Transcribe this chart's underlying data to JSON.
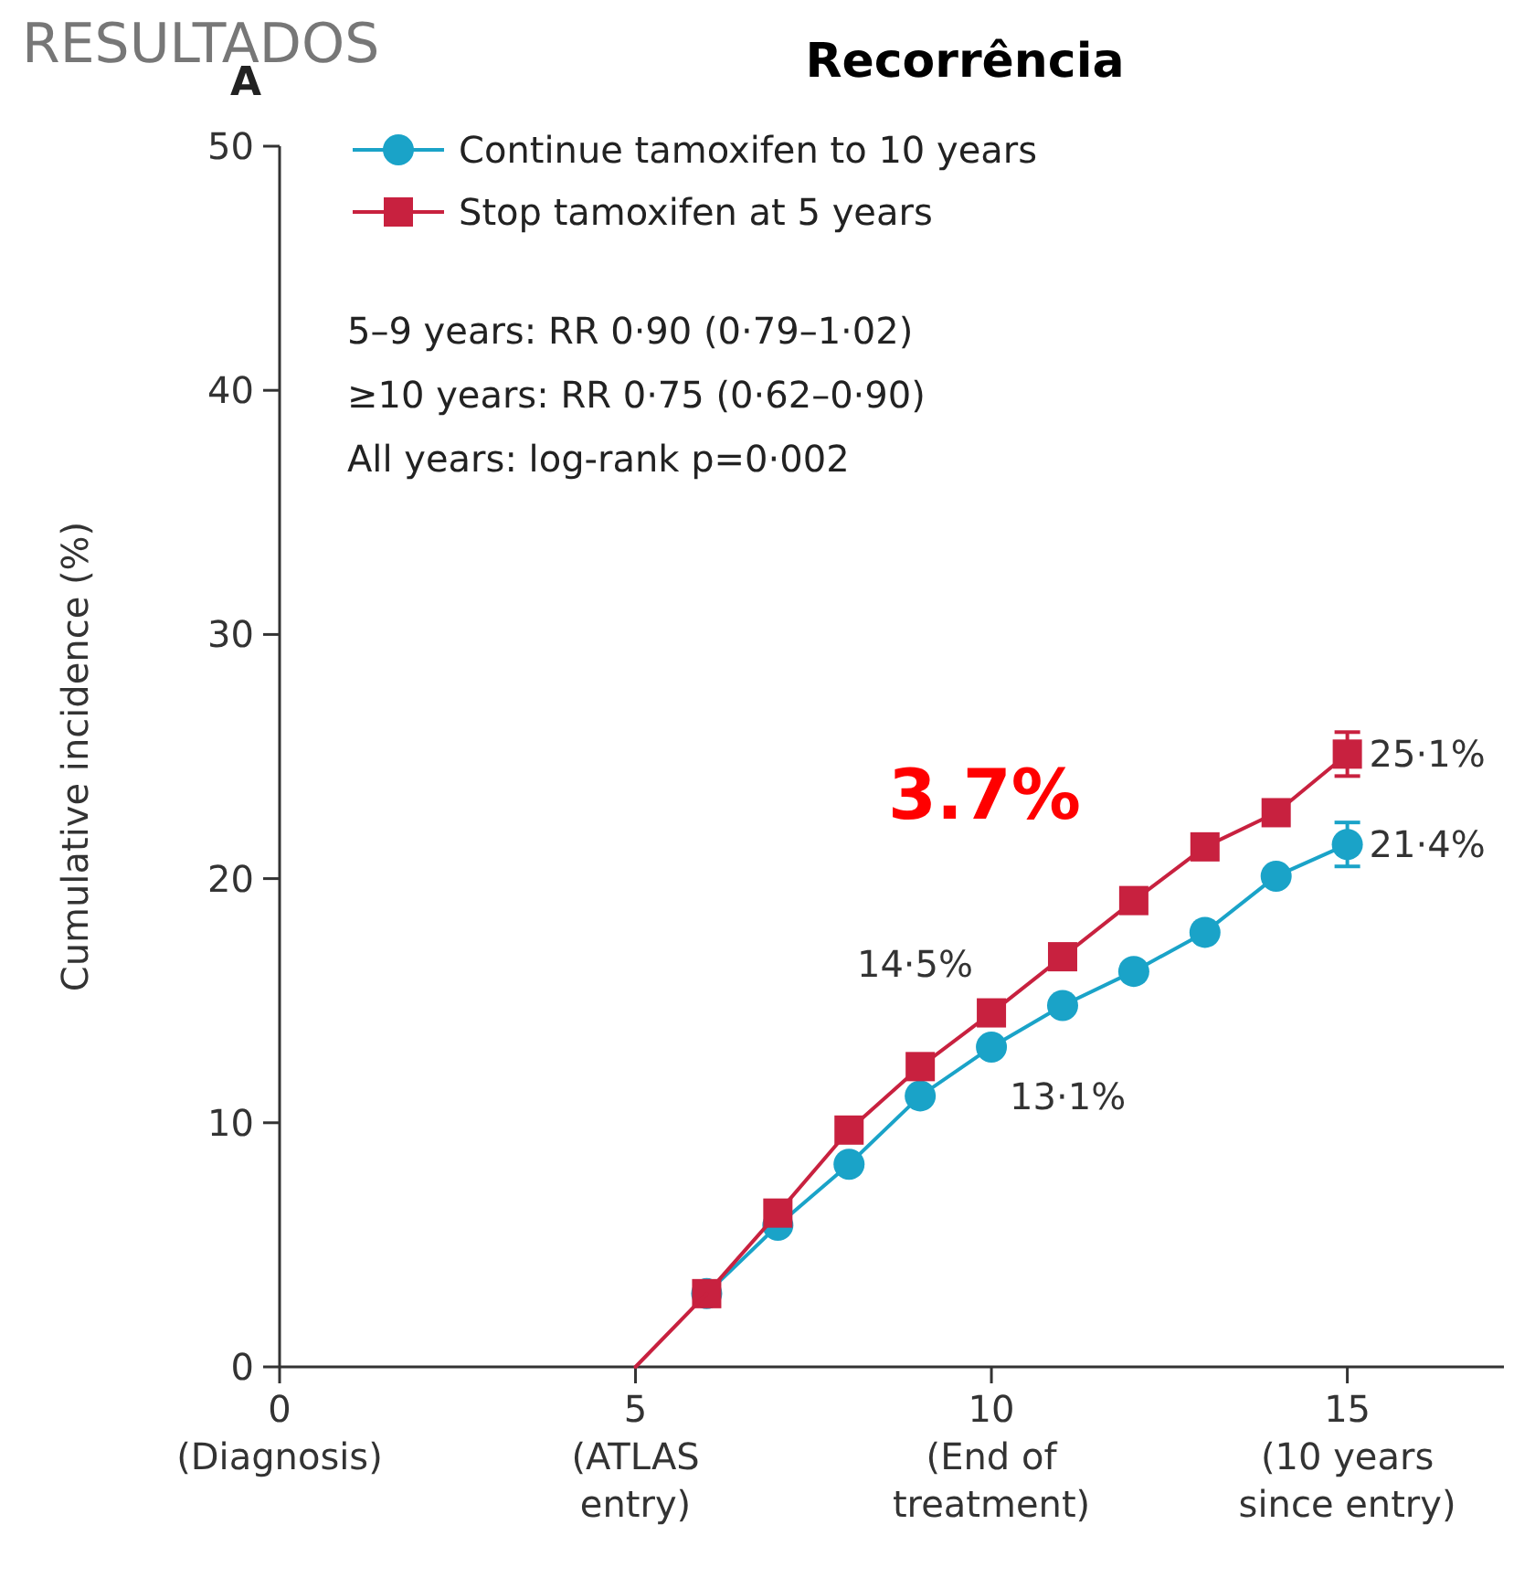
{
  "chart_data": {
    "type": "line",
    "title": "Recorrência",
    "ylabel": "Cumulative incidence (%)",
    "annotations": [
      "RESULTADOS",
      "A",
      "5–9 years: RR 0·90 (0·79–1·02)",
      "≥10 years: RR 0·75 (0·62–0·90)",
      "All years: log-rank p=0·002",
      "3.7%"
    ],
    "xlim": [
      0,
      17.2
    ],
    "ylim": [
      0,
      50
    ],
    "xticks": [
      {
        "value": 0,
        "label": "0\n(Diagnosis)"
      },
      {
        "value": 5,
        "label": "5\n(ATLAS\nentry)"
      },
      {
        "value": 10,
        "label": "10\n(End of\ntreatment)"
      },
      {
        "value": 15,
        "label": "15\n(10 years\nsince entry)"
      }
    ],
    "yticks": [
      0,
      10,
      20,
      30,
      40,
      50
    ],
    "grid": false,
    "legend": "top left",
    "line_style": "solid",
    "series": [
      {
        "name": "Continue tamoxifen to 10 years",
        "color": "#1aa3c8",
        "marker": "circle",
        "x": [
          6,
          7,
          8,
          9,
          10,
          11,
          12,
          13,
          14,
          15
        ],
        "values": [
          3.0,
          5.8,
          8.3,
          11.1,
          13.1,
          14.8,
          16.2,
          17.8,
          20.1,
          21.4
        ],
        "errors": [
          null,
          null,
          null,
          null,
          null,
          null,
          null,
          null,
          null,
          0.9
        ],
        "value_labels": [
          null,
          null,
          null,
          null,
          "13·1%",
          null,
          null,
          null,
          null,
          "21·4%"
        ]
      },
      {
        "name": "Stop tamoxifen at 5 years",
        "color": "#c8213f",
        "marker": "square",
        "x": [
          6,
          7,
          8,
          9,
          10,
          11,
          12,
          13,
          14,
          15
        ],
        "values": [
          3.0,
          6.3,
          9.7,
          12.3,
          14.5,
          16.8,
          19.1,
          21.3,
          22.7,
          25.1
        ],
        "errors": [
          null,
          null,
          null,
          null,
          null,
          null,
          null,
          null,
          null,
          0.9
        ],
        "value_labels": [
          null,
          null,
          null,
          null,
          "14·5%",
          null,
          null,
          null,
          null,
          "25·1%"
        ]
      },
      {
        "color": "#c8213f",
        "marker": "none",
        "x": [
          5,
          6
        ],
        "values": [
          0,
          3.0
        ]
      }
    ]
  }
}
